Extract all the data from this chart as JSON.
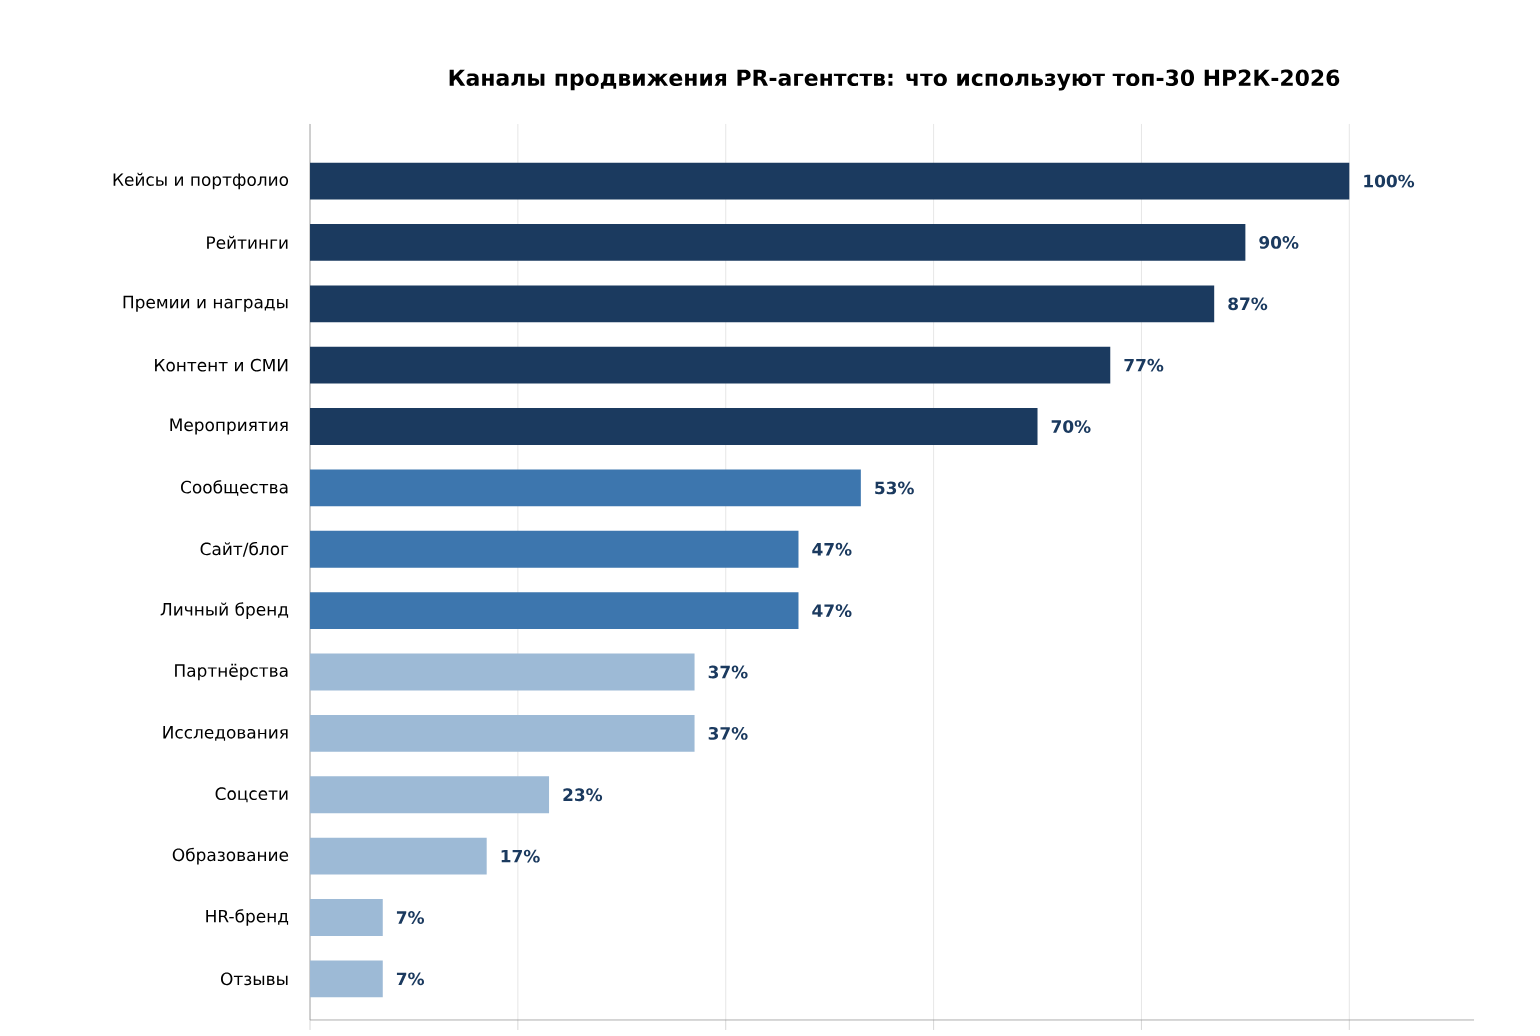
{
  "chart_data": {
    "type": "bar",
    "orientation": "horizontal",
    "title": "Каналы продвижения PR-агентств: что используют топ-30 НР2К-2026",
    "categories": [
      "Кейсы и портфолио",
      "Рейтинги",
      "Премии и награды",
      "Контент и СМИ",
      "Мероприятия",
      "Сообщества",
      "Сайт/блог",
      "Личный бренд",
      "Партнёрства",
      "Исследования",
      "Соцсети",
      "Образование",
      "HR-бренд",
      "Отзывы"
    ],
    "values": [
      100,
      90,
      87,
      77,
      70,
      53,
      47,
      47,
      37,
      37,
      23,
      17,
      7,
      7
    ],
    "value_labels": [
      "100%",
      "90%",
      "87%",
      "77%",
      "70%",
      "53%",
      "47%",
      "47%",
      "37%",
      "37%",
      "23%",
      "17%",
      "7%",
      "7%"
    ],
    "colors": [
      "#1b3a5f",
      "#1b3a5f",
      "#1b3a5f",
      "#1b3a5f",
      "#1b3a5f",
      "#3d76ae",
      "#3d76ae",
      "#3d76ae",
      "#9dbad6",
      "#9dbad6",
      "#9dbad6",
      "#9dbad6",
      "#9dbad6",
      "#9dbad6"
    ],
    "xlim": [
      0,
      112
    ],
    "xticks": [
      {
        "value": 0,
        "label": null
      },
      {
        "value": 20,
        "label": null
      },
      {
        "value": 40,
        "label": null
      },
      {
        "value": 60,
        "label": null
      },
      {
        "value": 80,
        "label": null
      },
      {
        "value": 100,
        "label": null
      }
    ],
    "grid": "x"
  }
}
